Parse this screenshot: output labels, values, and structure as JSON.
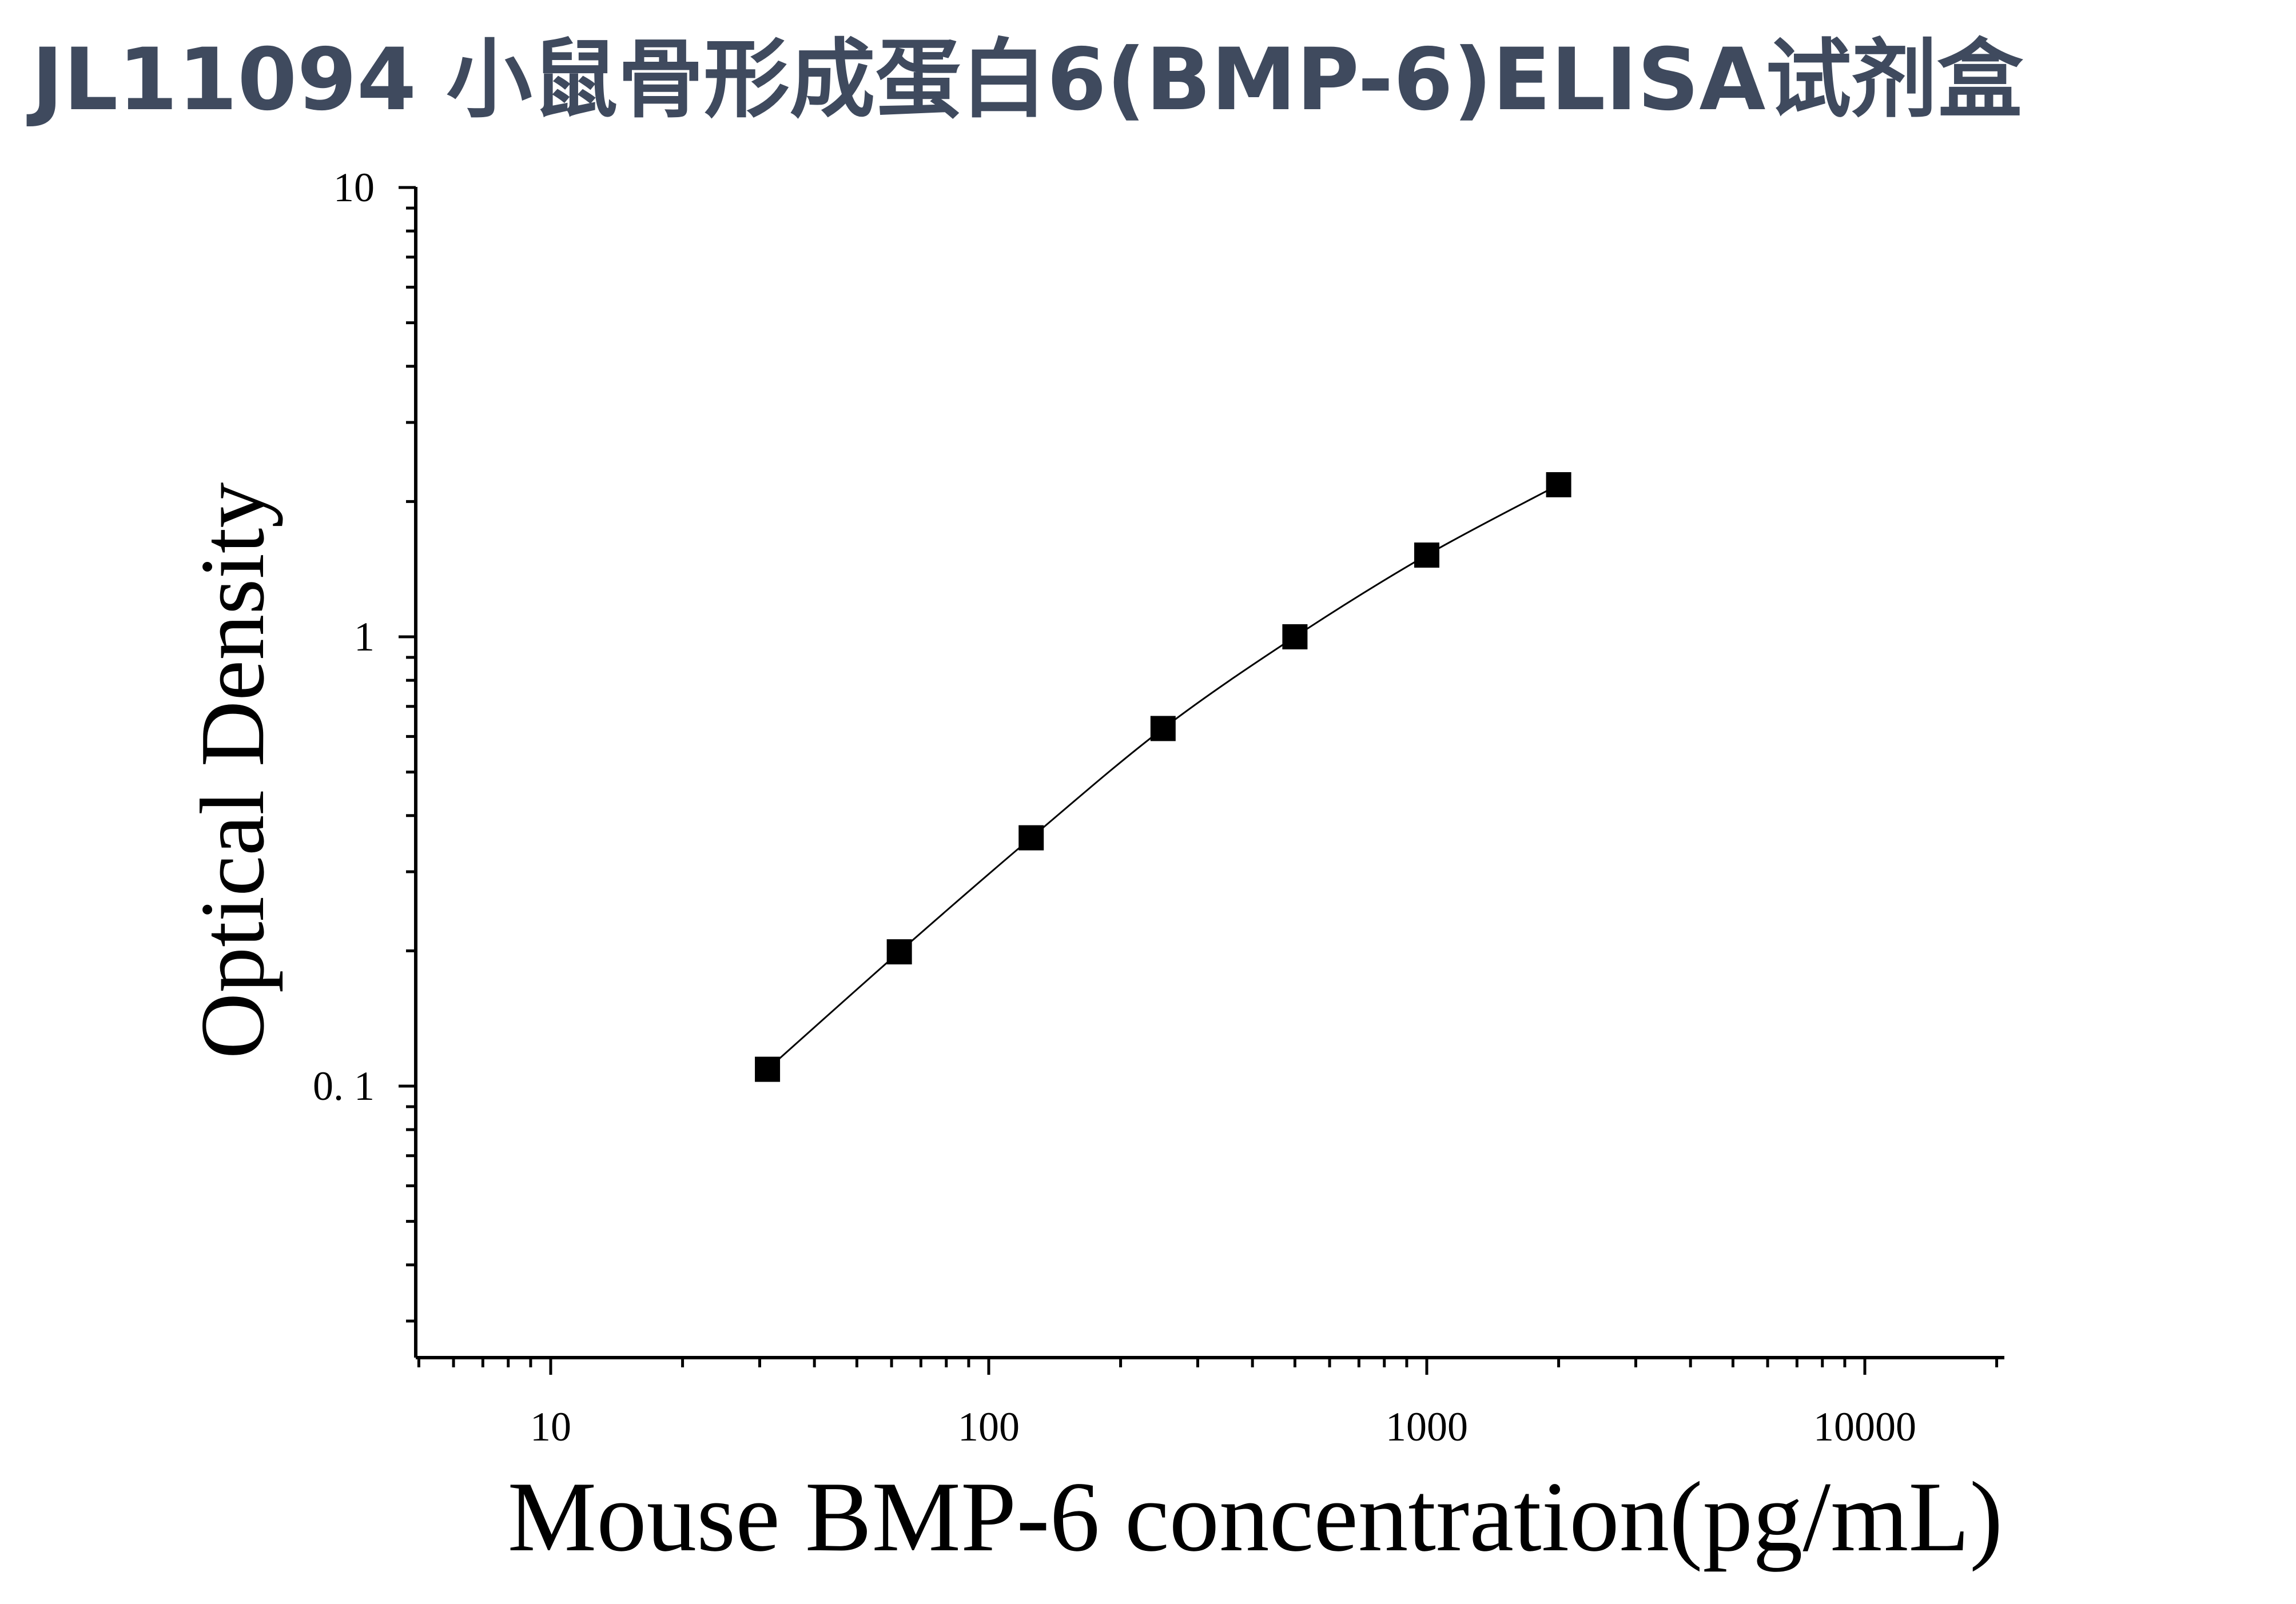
{
  "page": {
    "title": "JL11094 小鼠骨形成蛋白6(BMP-6)ELISA试剂盒"
  },
  "chart_data": {
    "type": "scatter",
    "title": "JL11094 小鼠骨形成蛋白6(BMP-6)ELISA试剂盒",
    "xlabel": "Mouse BMP-6 concentration(pg/mL)",
    "ylabel": "Optical Density",
    "xscale": "log",
    "yscale": "log",
    "xlim": [
      5,
      20000
    ],
    "ylim": [
      0.025,
      10
    ],
    "x_ticks": [
      10,
      100,
      1000,
      10000
    ],
    "x_tick_labels": [
      "10",
      "100",
      "1000",
      "10000"
    ],
    "y_ticks": [
      0.1,
      1,
      10
    ],
    "y_tick_labels": [
      "0. 1",
      "1",
      "10"
    ],
    "grid": false,
    "legend": "none",
    "series": [
      {
        "marker": "square",
        "line": "smooth fit",
        "x": [
          31.25,
          62.5,
          125,
          250,
          500,
          1000,
          2000
        ],
        "y": [
          0.109,
          0.199,
          0.357,
          0.625,
          1.0,
          1.52,
          2.18
        ]
      }
    ],
    "colors": {
      "marker": "#000000",
      "line": "#000000",
      "title": "#3f4a5e"
    }
  }
}
